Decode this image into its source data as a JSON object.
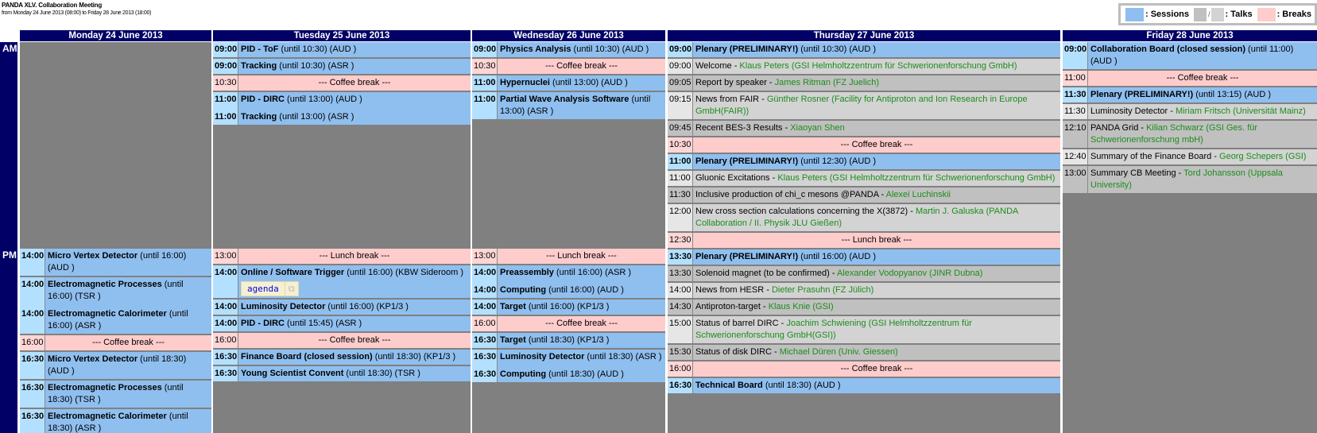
{
  "header": {
    "title": "PANDA XLV. Collaboration Meeting",
    "subtitle": "from Monday 24 June 2013 (08:00) to Friday 28 June 2013 (18:00)"
  },
  "legend": {
    "sessions": ": Sessions",
    "slash": "/",
    "talks": ": Talks",
    "breaks": ": Breaks",
    "colors": {
      "session": "#8fbfef",
      "talk_dark": "#c0c0c0",
      "talk_light": "#d3d3d3",
      "break": "#ffcccc"
    }
  },
  "side": {
    "am": "AM",
    "pm": "PM"
  },
  "colors": {
    "header_bg": "#000066",
    "background": "#808080",
    "speaker": "#1c8c1c"
  },
  "days": [
    {
      "label": "Monday 24 June 2013",
      "am": [],
      "pm": [
        {
          "type": "session",
          "entries": [
            {
              "time": "14:00",
              "title": "Micro Vertex Detector",
              "rest": " (until 16:00) (AUD )"
            }
          ]
        },
        {
          "type": "session",
          "entries": [
            {
              "time": "14:00",
              "title": "Electromagnetic Processes",
              "rest": " (until 16:00) (TSR )"
            },
            {
              "time": "14:00",
              "title": "Electromagnetic Calorimeter",
              "rest": " (until 16:00) (ASR )"
            }
          ]
        },
        {
          "type": "break",
          "time": "16:00",
          "title": "--- Coffee break ---"
        },
        {
          "type": "session",
          "entries": [
            {
              "time": "16:30",
              "title": "Micro Vertex Detector",
              "rest": " (until 18:30) (AUD )"
            }
          ]
        },
        {
          "type": "session",
          "entries": [
            {
              "time": "16:30",
              "title": "Electromagnetic Processes",
              "rest": " (until 18:30) (TSR )"
            }
          ]
        },
        {
          "type": "session",
          "entries": [
            {
              "time": "16:30",
              "title": "Electromagnetic Calorimeter",
              "rest": " (until 18:30) (ASR )"
            }
          ]
        }
      ]
    },
    {
      "label": "Tuesday 25 June 2013",
      "am": [
        {
          "type": "session",
          "entries": [
            {
              "time": "09:00",
              "title": "PID - ToF",
              "rest": " (until 10:30) (AUD )"
            }
          ]
        },
        {
          "type": "session",
          "entries": [
            {
              "time": "09:00",
              "title": "Tracking",
              "rest": " (until 10:30) (ASR )"
            }
          ]
        },
        {
          "type": "break",
          "time": "10:30",
          "title": "--- Coffee break ---"
        },
        {
          "type": "session",
          "entries": [
            {
              "time": "11:00",
              "title": "PID - DIRC",
              "rest": " (until 13:00) (AUD )"
            },
            {
              "time": "11:00",
              "title": "Tracking",
              "rest": " (until 13:00) (ASR )"
            }
          ]
        }
      ],
      "pm": [
        {
          "type": "break",
          "time": "13:00",
          "title": "--- Lunch break ---"
        },
        {
          "type": "session",
          "entries": [
            {
              "time": "14:00",
              "title": "Online / Software Trigger",
              "rest": " (until 16:00) (KBW Sideroom )",
              "agenda": "agenda"
            }
          ]
        },
        {
          "type": "session",
          "entries": [
            {
              "time": "14:00",
              "title": "Luminosity Detector",
              "rest": " (until 16:00) (KP1/3 )"
            }
          ]
        },
        {
          "type": "session",
          "entries": [
            {
              "time": "14:00",
              "title": "PID - DIRC",
              "rest": " (until 15:45) (ASR )"
            }
          ]
        },
        {
          "type": "break",
          "time": "16:00",
          "title": "--- Coffee break ---"
        },
        {
          "type": "session",
          "entries": [
            {
              "time": "16:30",
              "title": "Finance Board (closed session)",
              "rest": " (until 18:30) (KP1/3 )"
            }
          ]
        },
        {
          "type": "session",
          "entries": [
            {
              "time": "16:30",
              "title": "Young Scientist Convent",
              "rest": " (until 18:30) (TSR )"
            }
          ]
        }
      ]
    },
    {
      "label": "Wednesday 26 June 2013",
      "am": [
        {
          "type": "session",
          "entries": [
            {
              "time": "09:00",
              "title": "Physics Analysis",
              "rest": " (until 10:30) (AUD )"
            }
          ]
        },
        {
          "type": "break",
          "time": "10:30",
          "title": "--- Coffee break ---"
        },
        {
          "type": "session",
          "entries": [
            {
              "time": "11:00",
              "title": "Hypernuclei",
              "rest": " (until 13:00) (AUD )"
            }
          ]
        },
        {
          "type": "session",
          "entries": [
            {
              "time": "11:00",
              "title": "Partial Wave Analysis Software",
              "rest": " (until 13:00) (ASR )"
            }
          ]
        }
      ],
      "pm": [
        {
          "type": "break",
          "time": "13:00",
          "title": "--- Lunch break ---"
        },
        {
          "type": "session",
          "entries": [
            {
              "time": "14:00",
              "title": "Preassembly",
              "rest": " (until 16:00) (ASR )"
            },
            {
              "time": "14:00",
              "title": "Computing",
              "rest": " (until 16:00) (AUD )"
            }
          ]
        },
        {
          "type": "session",
          "entries": [
            {
              "time": "14:00",
              "title": "Target",
              "rest": " (until 16:00) (KP1/3 )"
            }
          ]
        },
        {
          "type": "break",
          "time": "16:00",
          "title": "--- Coffee break ---"
        },
        {
          "type": "session",
          "entries": [
            {
              "time": "16:30",
              "title": "Target",
              "rest": " (until 18:30) (KP1/3 )"
            }
          ]
        },
        {
          "type": "session",
          "entries": [
            {
              "time": "16:30",
              "title": "Luminosity Detector",
              "rest": " (until 18:30) (ASR )"
            },
            {
              "time": "16:30",
              "title": "Computing",
              "rest": " (until 18:30) (AUD )"
            }
          ]
        }
      ]
    },
    {
      "label": "Thursday 27 June 2013",
      "am": [
        {
          "type": "session",
          "entries": [
            {
              "time": "09:00",
              "title": "Plenary (PRELIMINARY!)",
              "rest": " (until 10:30) (AUD )"
            }
          ]
        },
        {
          "type": "talkL",
          "time": "09:00",
          "title": "Welcome - ",
          "speaker": "Klaus Peters (GSI Helmholtzzentrum für Schwerionenforschung GmbH)"
        },
        {
          "type": "talkD",
          "time": "09:05",
          "title": "Report by speaker - ",
          "speaker": "James Ritman (FZ Juelich)"
        },
        {
          "type": "talkL",
          "time": "09:15",
          "title": "News from FAIR - ",
          "speaker": "Günther Rosner (Facility for Antiproton and Ion Research in Europe GmbH(FAIR))"
        },
        {
          "type": "talkD",
          "time": "09:45",
          "title": "Recent BES-3 Results - ",
          "speaker": "Xiaoyan Shen"
        },
        {
          "type": "break",
          "time": "10:30",
          "title": "--- Coffee break ---"
        },
        {
          "type": "session",
          "entries": [
            {
              "time": "11:00",
              "title": "Plenary (PRELIMINARY!)",
              "rest": " (until 12:30) (AUD )"
            }
          ]
        },
        {
          "type": "talkL",
          "time": "11:00",
          "title": "Gluonic Excitations - ",
          "speaker": "Klaus Peters (GSI Helmholtzzentrum für Schwerionenforschung GmbH)"
        },
        {
          "type": "talkD",
          "time": "11:30",
          "title": "Inclusive production of chi_c mesons @PANDA - ",
          "speaker": "Alexei Luchinskii"
        },
        {
          "type": "talkL",
          "time": "12:00",
          "title": "New cross section calculations concerning the X(3872) - ",
          "speaker": "Martin J. Galuska (PANDA Collaboration / II. Physik JLU Gießen)"
        },
        {
          "type": "break",
          "time": "12:30",
          "title": "--- Lunch break ---"
        }
      ],
      "pm": [
        {
          "type": "session",
          "entries": [
            {
              "time": "13:30",
              "title": "Plenary (PRELIMINARY!)",
              "rest": " (until 16:00) (AUD )"
            }
          ]
        },
        {
          "type": "talkD",
          "time": "13:30",
          "title": "Solenoid magnet (to be confirmed) - ",
          "speaker": "Alexander Vodopyanov (JINR Dubna)"
        },
        {
          "type": "talkL",
          "time": "14:00",
          "title": "News from HESR - ",
          "speaker": "Dieter Prasuhn (FZ Jülich)"
        },
        {
          "type": "talkD",
          "time": "14:30",
          "title": "Antiproton-target - ",
          "speaker": "Klaus Knie (GSI)"
        },
        {
          "type": "talkL",
          "time": "15:00",
          "title": "Status of barrel DIRC - ",
          "speaker": "Joachim Schwiening (GSI Helmholtzzentrum für Schwerionenforschung GmbH(GSI))"
        },
        {
          "type": "talkD",
          "time": "15:30",
          "title": "Status of disk DIRC - ",
          "speaker": "Michael Düren (Univ. Giessen)"
        },
        {
          "type": "break",
          "time": "16:00",
          "title": "--- Coffee break ---"
        },
        {
          "type": "session",
          "entries": [
            {
              "time": "16:30",
              "title": "Technical Board",
              "rest": " (until 18:30) (AUD )"
            }
          ]
        }
      ]
    },
    {
      "label": "Friday 28 June 2013",
      "am": [
        {
          "type": "session",
          "entries": [
            {
              "time": "09:00",
              "title": "Collaboration Board (closed session)",
              "rest": " (until 11:00) (AUD )"
            }
          ]
        },
        {
          "type": "break",
          "time": "11:00",
          "title": "--- Coffee break ---"
        },
        {
          "type": "session",
          "entries": [
            {
              "time": "11:30",
              "title": "Plenary (PRELIMINARY!)",
              "rest": " (until 13:15) (AUD )"
            }
          ]
        },
        {
          "type": "talkL",
          "time": "11:30",
          "title": "Luminosity Detector - ",
          "speaker": "Miriam Fritsch (Universität Mainz)"
        },
        {
          "type": "talkD",
          "time": "12:10",
          "title": "PANDA Grid - ",
          "speaker": "Kilian Schwarz (GSI Ges. für Schwerionenforschung mbH)"
        },
        {
          "type": "talkL",
          "time": "12:40",
          "title": "Summary of the Finance Board - ",
          "speaker": "Georg Schepers (GSI)"
        },
        {
          "type": "talkD",
          "time": "13:00",
          "title": "Summary CB Meeting - ",
          "speaker": "Tord Johansson (Uppsala University)"
        }
      ],
      "pm": []
    }
  ]
}
